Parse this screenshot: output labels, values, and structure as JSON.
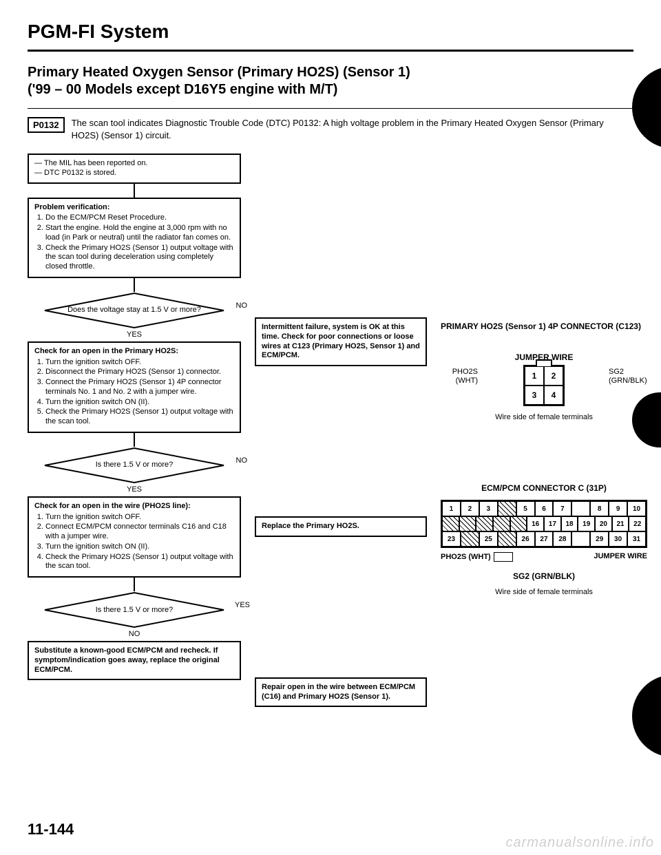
{
  "system_title": "PGM-FI System",
  "heading_line1": "Primary Heated Oxygen Sensor (Primary HO2S) (Sensor 1)",
  "heading_line2": "('99 – 00 Models except D16Y5 engine with M/T)",
  "dtc_code": "P0132",
  "dtc_text": "The scan tool indicates Diagnostic Trouble Code (DTC) P0132: A high voltage problem in the Primary Heated Oxygen Sensor (Primary HO2S) (Sensor 1) circuit.",
  "flow": {
    "start_box": "— The MIL has been reported on.\n— DTC P0132 is stored.",
    "verify_title": "Problem verification:",
    "verify_items": [
      "Do the ECM/PCM Reset Procedure.",
      "Start the engine. Hold the engine at 3,000 rpm with no load (in Park or neutral) until the radiator fan comes on.",
      "Check the Primary HO2S (Sensor 1) output voltage with the scan tool during deceleration using completely closed throttle."
    ],
    "decision1": "Does the voltage stay at 1.5 V or more?",
    "d1_no_box": "Intermittent failure, system is OK at this time. Check for poor connections or loose wires at C123 (Primary HO2S, Sensor 1) and ECM/PCM.",
    "check_open_title": "Check for an open in the Primary HO2S:",
    "check_open_items": [
      "Turn the ignition switch OFF.",
      "Disconnect the Primary HO2S (Sensor 1) connector.",
      "Connect the Primary HO2S (Sensor 1) 4P connector terminals No. 1 and No. 2 with a jumper wire.",
      "Turn the ignition switch ON (II).",
      "Check the Primary HO2S (Sensor 1) output voltage with the scan tool."
    ],
    "decision2": "Is there 1.5 V or more?",
    "d2_no_box": "Replace the Primary HO2S.",
    "check_wire_title": "Check for an open in the wire (PHO2S line):",
    "check_wire_items": [
      "Turn the ignition switch OFF.",
      "Connect ECM/PCM connector terminals C16 and C18 with a jumper wire.",
      "Turn the ignition switch ON (II).",
      "Check the Primary HO2S (Sensor 1) output voltage with the scan tool."
    ],
    "decision3": "Is there 1.5 V or more?",
    "d3_yes_box": "Repair open in the wire between ECM/PCM (C16) and Primary HO2S (Sensor 1).",
    "final_box": "Substitute a known-good ECM/PCM and recheck. If symptom/indication goes away, replace the original ECM/PCM.",
    "yes": "YES",
    "no": "NO"
  },
  "right": {
    "conn4p_title": "PRIMARY HO2S (Sensor 1) 4P CONNECTOR (C123)",
    "jumper_wire": "JUMPER WIRE",
    "pho2s": "PHO2S (WHT)",
    "sg2": "SG2 (GRN/BLK)",
    "pins": [
      "1",
      "2",
      "3",
      "4"
    ],
    "wire_side": "Wire side of female terminals",
    "ecm_title": "ECM/PCM CONNECTOR C (31P)",
    "ecm_row1": [
      "1",
      "2",
      "3",
      "",
      "5",
      "6",
      "7",
      "",
      "8",
      "9",
      "10"
    ],
    "ecm_row2": [
      "",
      "",
      "",
      "",
      "",
      "16",
      "17",
      "18",
      "19",
      "20",
      "21",
      "22"
    ],
    "ecm_row3": [
      "23",
      "",
      "25",
      "",
      "26",
      "27",
      "28",
      "",
      "29",
      "30",
      "31"
    ],
    "ecm_hatched_r1": [
      3
    ],
    "ecm_hatched_r2": [
      0,
      1,
      2,
      3,
      4
    ],
    "ecm_hatched_r3": [
      1,
      3
    ],
    "pho2s_wht": "PHO2S (WHT)",
    "jumper_wire2": "JUMPER WIRE",
    "sg2_grnblk": "SG2 (GRN/BLK)"
  },
  "page_number": "11-144",
  "watermark": "carmanualsonline.info"
}
